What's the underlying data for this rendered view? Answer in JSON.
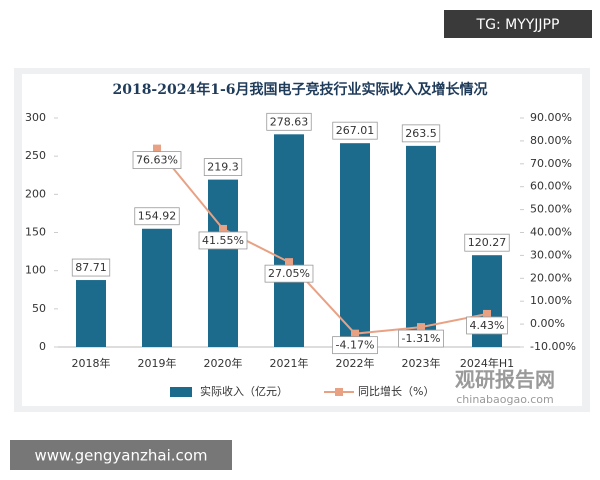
{
  "tg_badge": "TG: MYYJJPP",
  "site_footer": "www.gengyanzhai.com",
  "watermark": {
    "brand": "观研报告网",
    "url": "chinabaogao.com"
  },
  "chart_data": {
    "type": "bar",
    "title": "2018-2024年1-6月我国电子竞技行业实际收入及增长情况",
    "categories": [
      "2018年",
      "2019年",
      "2020年",
      "2021年",
      "2022年",
      "2023年",
      "2024年H1"
    ],
    "series": [
      {
        "name": "实际收入（亿元）",
        "type": "bar",
        "color": "#1d6b8c",
        "values": [
          87.71,
          154.92,
          219.3,
          278.63,
          267.01,
          263.5,
          120.27
        ]
      },
      {
        "name": "同比增长（%）",
        "type": "line",
        "axis": "y2",
        "color": "#e9a184",
        "values": [
          null,
          76.63,
          41.55,
          27.05,
          -4.17,
          -1.31,
          4.43
        ],
        "value_labels": [
          null,
          "76.63%",
          "41.55%",
          "27.05%",
          "-4.17%",
          "-1.31%",
          "4.43%"
        ]
      }
    ],
    "ylim": [
      0,
      300
    ],
    "yticks": [
      0,
      50,
      100,
      150,
      200,
      250,
      300
    ],
    "y2lim": [
      -10,
      90
    ],
    "y2ticks": [
      {
        "value": -10,
        "label": "-10.00%"
      },
      {
        "value": 0,
        "label": "0.00%"
      },
      {
        "value": 10,
        "label": "10.00%"
      },
      {
        "value": 20,
        "label": "20.00%"
      },
      {
        "value": 30,
        "label": "30.00%"
      },
      {
        "value": 40,
        "label": "40.00%"
      },
      {
        "value": 50,
        "label": "50.00%"
      },
      {
        "value": 60,
        "label": "60.00%"
      },
      {
        "value": 70,
        "label": "70.00%"
      },
      {
        "value": 80,
        "label": "80.00%"
      },
      {
        "value": 90,
        "label": "90.00%"
      }
    ],
    "grid": false,
    "legend": "bottom"
  }
}
